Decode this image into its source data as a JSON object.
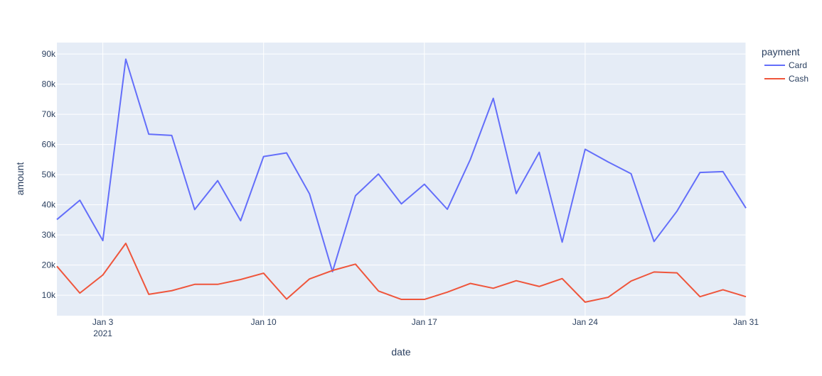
{
  "chart_data": {
    "type": "line",
    "xlabel": "date",
    "ylabel": "amount",
    "legend_title": "payment",
    "legend_position": "right",
    "grid": true,
    "background_color": "#e5ecf6",
    "xlim": [
      "2021-01-01",
      "2021-01-31"
    ],
    "ylim": [
      3200,
      93800
    ],
    "x_ticks": [
      {
        "date": "2021-01-03",
        "label": "Jan 3",
        "sublabel": "2021"
      },
      {
        "date": "2021-01-10",
        "label": "Jan 10",
        "sublabel": ""
      },
      {
        "date": "2021-01-17",
        "label": "Jan 17",
        "sublabel": ""
      },
      {
        "date": "2021-01-24",
        "label": "Jan 24",
        "sublabel": ""
      },
      {
        "date": "2021-01-31",
        "label": "Jan 31",
        "sublabel": ""
      }
    ],
    "y_ticks": [
      {
        "value": 10000,
        "label": "10k"
      },
      {
        "value": 20000,
        "label": "20k"
      },
      {
        "value": 30000,
        "label": "30k"
      },
      {
        "value": 40000,
        "label": "40k"
      },
      {
        "value": 50000,
        "label": "50k"
      },
      {
        "value": 60000,
        "label": "60k"
      },
      {
        "value": 70000,
        "label": "70k"
      },
      {
        "value": 80000,
        "label": "80k"
      },
      {
        "value": 90000,
        "label": "90k"
      }
    ],
    "x": [
      "2021-01-01",
      "2021-01-02",
      "2021-01-03",
      "2021-01-04",
      "2021-01-05",
      "2021-01-06",
      "2021-01-07",
      "2021-01-08",
      "2021-01-09",
      "2021-01-10",
      "2021-01-11",
      "2021-01-12",
      "2021-01-13",
      "2021-01-14",
      "2021-01-15",
      "2021-01-16",
      "2021-01-17",
      "2021-01-18",
      "2021-01-19",
      "2021-01-20",
      "2021-01-21",
      "2021-01-22",
      "2021-01-23",
      "2021-01-24",
      "2021-01-25",
      "2021-01-26",
      "2021-01-27",
      "2021-01-28",
      "2021-01-29",
      "2021-01-30",
      "2021-01-31"
    ],
    "series": [
      {
        "name": "Card",
        "color": "#636efa",
        "values": [
          35100,
          41500,
          28100,
          88300,
          63400,
          63000,
          38400,
          48000,
          34700,
          56000,
          57200,
          43600,
          17800,
          43000,
          50200,
          40300,
          46800,
          38500,
          55000,
          75300,
          43700,
          57400,
          27600,
          58400,
          54200,
          50300,
          27800,
          37900,
          50700,
          51000,
          38900
        ]
      },
      {
        "name": "Cash",
        "color": "#ef553b",
        "values": [
          19600,
          10700,
          16700,
          27200,
          10300,
          11500,
          13600,
          13600,
          15200,
          17300,
          8700,
          15400,
          18200,
          20300,
          11400,
          8600,
          8600,
          11000,
          13900,
          12300,
          14800,
          12900,
          15500,
          7700,
          9300,
          14700,
          17700,
          17400,
          9500,
          11800,
          9500
        ]
      }
    ]
  }
}
